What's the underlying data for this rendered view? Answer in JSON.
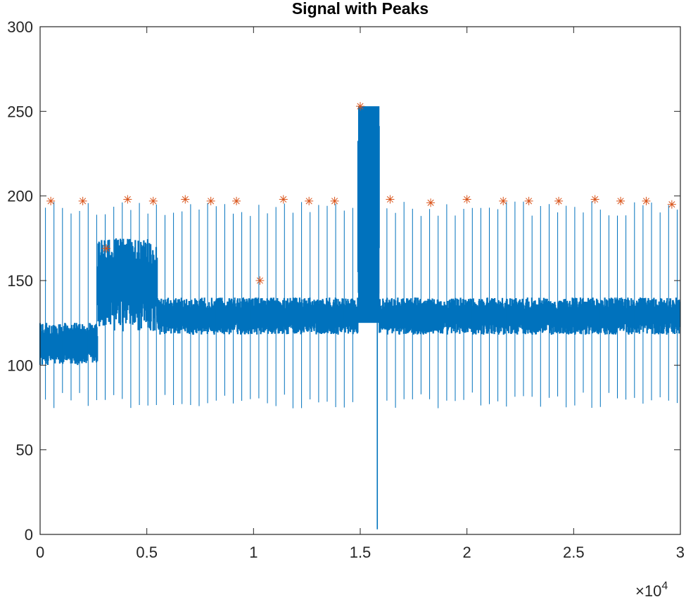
{
  "chart_data": {
    "type": "line",
    "title": "Signal with Peaks",
    "xlim": [
      0,
      30000
    ],
    "ylim": [
      0,
      300
    ],
    "x_ticks": [
      0,
      5000,
      10000,
      15000,
      20000,
      25000,
      30000
    ],
    "x_tick_labels": [
      "0",
      "0.5",
      "1",
      "1.5",
      "2",
      "2.5",
      "3"
    ],
    "y_ticks": [
      0,
      50,
      100,
      150,
      200,
      250,
      300
    ],
    "y_tick_labels": [
      "0",
      "50",
      "100",
      "150",
      "200",
      "250",
      "300"
    ],
    "x_exponent_label": {
      "base": "×10",
      "exponent": "4"
    },
    "grid": false,
    "colors": {
      "signal": "#0072BD",
      "peaks": "#D95319",
      "axes": "#262626"
    },
    "baseline_segments": [
      {
        "x_start": 0,
        "x_end": 2700,
        "low": 100,
        "high": 125
      },
      {
        "x_start": 2700,
        "x_end": 5500,
        "low": 120,
        "high": 175
      },
      {
        "x_start": 5500,
        "x_end": 14900,
        "low": 118,
        "high": 140
      },
      {
        "x_start": 14900,
        "x_end": 15900,
        "low": 125,
        "high": 253
      },
      {
        "x_start": 15900,
        "x_end": 30000,
        "low": 118,
        "high": 140
      }
    ],
    "signal_minimum": {
      "x": 15800,
      "y": 3
    },
    "peaks": {
      "marker": "asterisk",
      "points": [
        {
          "x": 500,
          "y": 197
        },
        {
          "x": 2000,
          "y": 197
        },
        {
          "x": 3100,
          "y": 169
        },
        {
          "x": 4100,
          "y": 198
        },
        {
          "x": 5300,
          "y": 197
        },
        {
          "x": 6800,
          "y": 198
        },
        {
          "x": 8000,
          "y": 197
        },
        {
          "x": 9200,
          "y": 197
        },
        {
          "x": 10300,
          "y": 150
        },
        {
          "x": 11400,
          "y": 198
        },
        {
          "x": 12600,
          "y": 197
        },
        {
          "x": 13800,
          "y": 197
        },
        {
          "x": 15000,
          "y": 253
        },
        {
          "x": 16400,
          "y": 198
        },
        {
          "x": 18300,
          "y": 196
        },
        {
          "x": 20000,
          "y": 198
        },
        {
          "x": 21700,
          "y": 197
        },
        {
          "x": 22900,
          "y": 197
        },
        {
          "x": 24300,
          "y": 197
        },
        {
          "x": 26000,
          "y": 198
        },
        {
          "x": 27200,
          "y": 197
        },
        {
          "x": 28400,
          "y": 197
        },
        {
          "x": 29600,
          "y": 195
        }
      ]
    }
  }
}
